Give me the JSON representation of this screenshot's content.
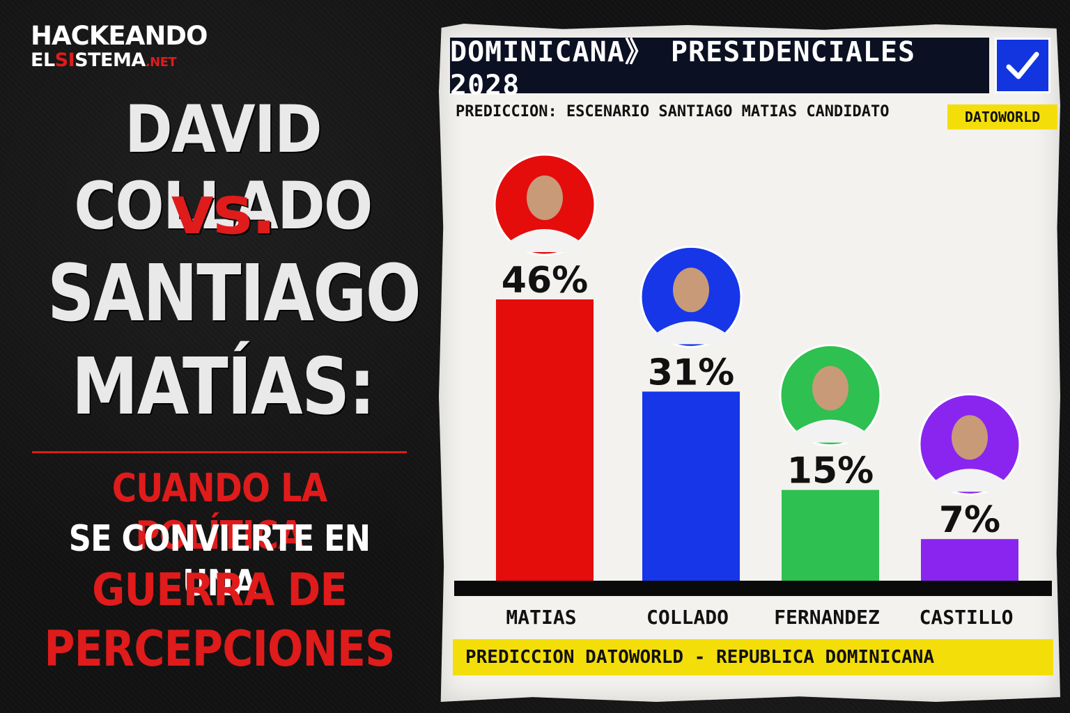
{
  "brand": {
    "top": "HACKEANDO",
    "bottom_a": "EL",
    "bottom_b": "SI",
    "bottom_c": "STEMA",
    "bottom_d": ".NET"
  },
  "headline": {
    "line1": "DAVID COLLADO",
    "line2": "vs.",
    "line3": "SANTIAGO",
    "line4": "MATÍAS:"
  },
  "subheadline": {
    "line1": "CUANDO LA POLÍTICA",
    "line2": "SE CONVIERTE EN UNA",
    "line3": "GUERRA DE",
    "line4": "PERCEPCIONES"
  },
  "panel": {
    "title": "DOMINICANA》 PRESIDENCIALES 2028",
    "check_icon": "checkmark-icon",
    "scenario": "PREDICCION: ESCENARIO SANTIAGO MATIAS CANDIDATO",
    "source": "DATOWORLD",
    "footer": "PREDICCION DATOWORLD - REPUBLICA DOMINICANA"
  },
  "colors": {
    "red": "#e50c0c",
    "blue": "#1636e8",
    "green": "#2ec050",
    "purple": "#8a25f0",
    "title_bg": "#0b1022",
    "yellow": "#f4de0a"
  },
  "chart_data": {
    "type": "bar",
    "categories": [
      "MATIAS",
      "COLLADO",
      "FERNANDEZ",
      "CASTILLO"
    ],
    "values": [
      46,
      31,
      15,
      7
    ],
    "value_labels": [
      "46%",
      "31%",
      "15%",
      "7%"
    ],
    "colors": [
      "#e50c0c",
      "#1636e8",
      "#2ec050",
      "#8a25f0"
    ],
    "ylim": [
      0,
      46
    ],
    "grid": false,
    "legend": "none",
    "xlabel": "",
    "ylabel": ""
  }
}
